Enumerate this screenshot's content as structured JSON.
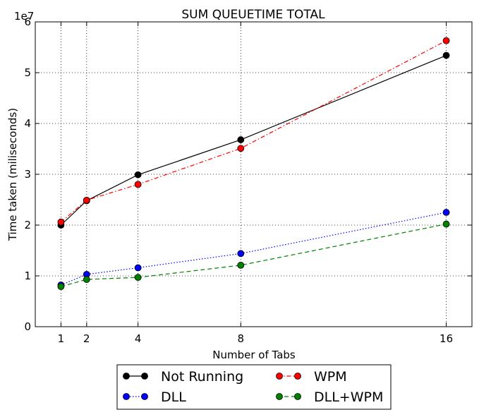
{
  "chart_data": {
    "type": "line",
    "title": "SUM QUEUETIME TOTAL",
    "xlabel": "Number of Tabs",
    "ylabel": "Time taken (miliseconds)",
    "y_offset_label": "1e7",
    "x": [
      1,
      2,
      4,
      8,
      16
    ],
    "xlim": [
      0,
      17
    ],
    "ylim": [
      0,
      6
    ],
    "x_ticks": [
      1,
      2,
      4,
      8,
      16
    ],
    "y_ticks": [
      0,
      1,
      2,
      3,
      4,
      5,
      6
    ],
    "grid": true,
    "legend_placement": "below",
    "series": [
      {
        "name": "Not Running",
        "values": [
          2.0,
          2.48,
          2.99,
          3.68,
          5.34
        ],
        "color": "#000000",
        "linestyle": "solid"
      },
      {
        "name": "DLL",
        "values": [
          0.82,
          1.03,
          1.16,
          1.44,
          2.25
        ],
        "color": "#0000ff",
        "linestyle": "dotted"
      },
      {
        "name": "WPM",
        "values": [
          2.06,
          2.49,
          2.8,
          3.51,
          5.63
        ],
        "color": "#ff0000",
        "linestyle": "dashdot"
      },
      {
        "name": "DLL+WPM",
        "values": [
          0.79,
          0.93,
          0.97,
          1.21,
          2.02
        ],
        "color": "#008000",
        "linestyle": "dashed"
      }
    ]
  }
}
